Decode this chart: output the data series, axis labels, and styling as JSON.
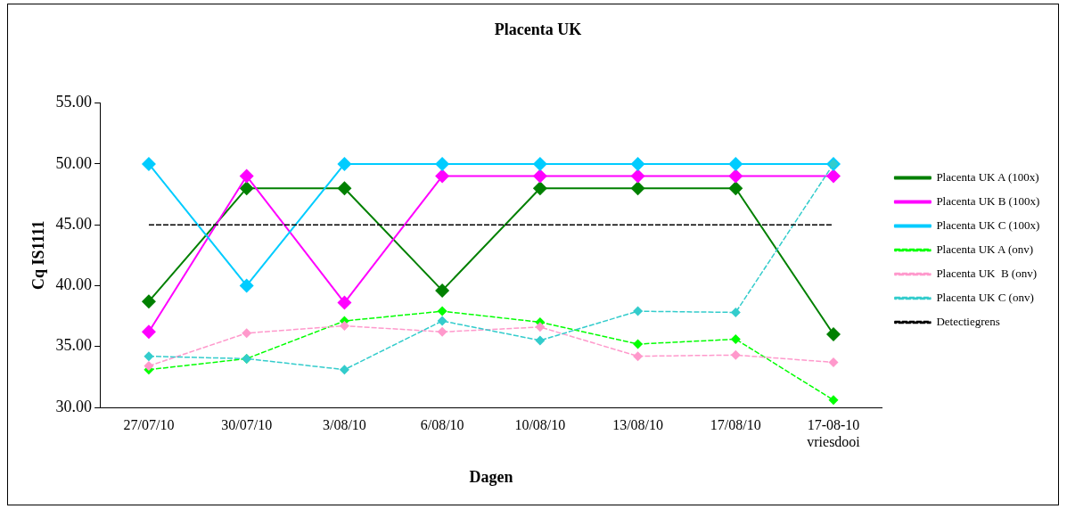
{
  "chart_data": {
    "type": "line",
    "title": "Placenta UK",
    "xlabel": "Dagen",
    "ylabel": "Cq IS1111",
    "categories": [
      "27/07/10",
      "30/07/10",
      "3/08/10",
      "6/08/10",
      "10/08/10",
      "13/08/10",
      "17/08/10",
      "17-08-10\nvriesdooi"
    ],
    "ylim": [
      30,
      55
    ],
    "yticks": [
      {
        "value": 30,
        "label": "30.00"
      },
      {
        "value": 35,
        "label": "35.00"
      },
      {
        "value": 40,
        "label": "40.00"
      },
      {
        "value": 45,
        "label": "45.00"
      },
      {
        "value": 50,
        "label": "50.00"
      },
      {
        "value": 55,
        "label": "55.00"
      }
    ],
    "grid": false,
    "legend": "right",
    "marker": "diamond",
    "series": [
      {
        "name": "Placenta UK A (100x)",
        "color": "#008000",
        "line_style": "solid",
        "values": [
          38.7,
          48,
          48,
          39.6,
          48,
          48,
          48,
          36
        ]
      },
      {
        "name": "Placenta UK B (100x)",
        "color": "#ff00ff",
        "line_style": "solid",
        "values": [
          36.2,
          49,
          38.6,
          49,
          49,
          49,
          49,
          49
        ]
      },
      {
        "name": "Placenta UK C (100x)",
        "color": "#00ccff",
        "line_style": "solid",
        "values": [
          50,
          40,
          50,
          50,
          50,
          50,
          50,
          50
        ]
      },
      {
        "name": "Placenta UK A (onv)",
        "color": "#00ff00",
        "line_style": "dashed",
        "values": [
          33.1,
          34.0,
          37.1,
          37.9,
          37.0,
          35.2,
          35.6,
          30.6
        ]
      },
      {
        "name": "Placenta UK  B (onv)",
        "color": "#ff99cc",
        "line_style": "dashed",
        "values": [
          33.4,
          36.1,
          36.7,
          36.2,
          36.6,
          34.2,
          34.3,
          33.7
        ]
      },
      {
        "name": "Placenta UK C (onv)",
        "color": "#33cccc",
        "line_style": "dashed",
        "values": [
          34.2,
          34.0,
          33.1,
          37.1,
          35.5,
          37.9,
          37.8,
          50
        ]
      },
      {
        "name": "Detectiegrens",
        "color": "#000000",
        "line_style": "dashed",
        "marker": "none",
        "values": [
          45,
          45,
          45,
          45,
          45,
          45,
          45,
          45
        ]
      }
    ]
  }
}
